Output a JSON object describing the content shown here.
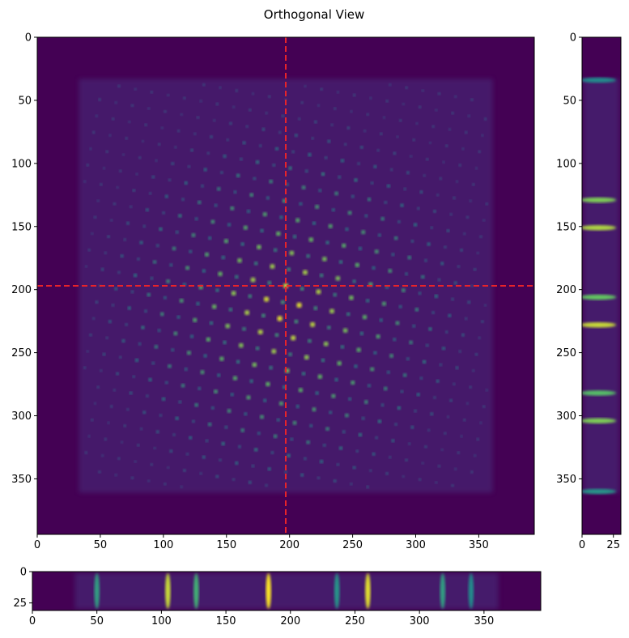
{
  "title": "Orthogonal View",
  "colors": {
    "background": "#440154",
    "frame_fill": "#440154",
    "crosshair": "#e8232a",
    "colormap": "viridis"
  },
  "chart_data": [
    {
      "type": "heatmap",
      "panel": "main-xy",
      "title": "Orthogonal View",
      "xlim": [
        0,
        394
      ],
      "ylim": [
        394,
        0
      ],
      "xticks": [
        0,
        50,
        100,
        150,
        200,
        250,
        300,
        350
      ],
      "yticks": [
        0,
        50,
        100,
        150,
        200,
        250,
        300,
        350
      ],
      "crosshair": {
        "x": 197,
        "y": 197,
        "style": "dashed",
        "color": "#e8232a"
      },
      "content": "square lattice of bright spots, brightest near centre, fading toward edges",
      "signal_region": {
        "x": [
          33,
          361
        ],
        "y": [
          33,
          361
        ]
      }
    },
    {
      "type": "heatmap",
      "panel": "side-yz",
      "xlim": [
        0,
        31
      ],
      "ylim": [
        394,
        0
      ],
      "xticks": [
        0,
        25
      ],
      "yticks": [
        0,
        50,
        100,
        150,
        200,
        250,
        300,
        350
      ],
      "bands": [
        {
          "y": 34,
          "intensity": 0.35
        },
        {
          "y": 129,
          "intensity": 0.75
        },
        {
          "y": 151,
          "intensity": 0.85
        },
        {
          "y": 206,
          "intensity": 0.7
        },
        {
          "y": 228,
          "intensity": 0.9
        },
        {
          "y": 282,
          "intensity": 0.65
        },
        {
          "y": 304,
          "intensity": 0.75
        },
        {
          "y": 360,
          "intensity": 0.4
        }
      ]
    },
    {
      "type": "heatmap",
      "panel": "bottom-xz",
      "xlim": [
        0,
        394
      ],
      "ylim": [
        31,
        0
      ],
      "xticks": [
        0,
        50,
        100,
        150,
        200,
        250,
        300,
        350
      ],
      "yticks": [
        0,
        25
      ],
      "bands": [
        {
          "x": 50,
          "intensity": 0.45
        },
        {
          "x": 105,
          "intensity": 0.9
        },
        {
          "x": 127,
          "intensity": 0.55
        },
        {
          "x": 183,
          "intensity": 1.0
        },
        {
          "x": 236,
          "intensity": 0.4
        },
        {
          "x": 260,
          "intensity": 0.95
        },
        {
          "x": 318,
          "intensity": 0.45
        },
        {
          "x": 340,
          "intensity": 0.35
        }
      ]
    }
  ]
}
